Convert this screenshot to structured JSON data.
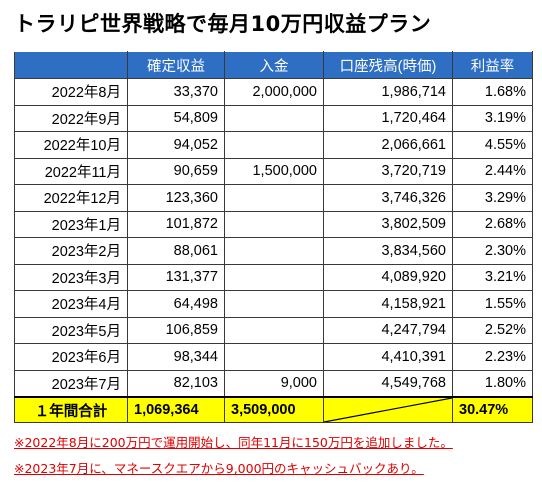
{
  "title": "トラリピ世界戦略で毎月10万円収益プラン",
  "columns": [
    "",
    "確定収益",
    "入金",
    "口座残高(時価)",
    "利益率"
  ],
  "rows": [
    {
      "month": "2022年8月",
      "profit": "33,370",
      "deposit": "2,000,000",
      "balance": "1,986,714",
      "rate": "1.68%"
    },
    {
      "month": "2022年9月",
      "profit": "54,809",
      "deposit": "",
      "balance": "1,720,464",
      "rate": "3.19%"
    },
    {
      "month": "2022年10月",
      "profit": "94,052",
      "deposit": "",
      "balance": "2,066,661",
      "rate": "4.55%"
    },
    {
      "month": "2022年11月",
      "profit": "90,659",
      "deposit": "1,500,000",
      "balance": "3,720,719",
      "rate": "2.44%"
    },
    {
      "month": "2022年12月",
      "profit": "123,360",
      "deposit": "",
      "balance": "3,746,326",
      "rate": "3.29%"
    },
    {
      "month": "2023年1月",
      "profit": "101,872",
      "deposit": "",
      "balance": "3,802,509",
      "rate": "2.68%"
    },
    {
      "month": "2023年2月",
      "profit": "88,061",
      "deposit": "",
      "balance": "3,834,560",
      "rate": "2.30%"
    },
    {
      "month": "2023年3月",
      "profit": "131,377",
      "deposit": "",
      "balance": "4,089,920",
      "rate": "3.21%"
    },
    {
      "month": "2023年4月",
      "profit": "64,498",
      "deposit": "",
      "balance": "4,158,921",
      "rate": "1.55%"
    },
    {
      "month": "2023年5月",
      "profit": "106,859",
      "deposit": "",
      "balance": "4,247,794",
      "rate": "2.52%"
    },
    {
      "month": "2023年6月",
      "profit": "98,344",
      "deposit": "",
      "balance": "4,410,391",
      "rate": "2.23%"
    },
    {
      "month": "2023年7月",
      "profit": "82,103",
      "deposit": "9,000",
      "balance": "4,549,768",
      "rate": "1.80%"
    }
  ],
  "total": {
    "label": "１年間合計",
    "profit": "1,069,364",
    "deposit": "3,509,000",
    "balance": "",
    "rate": "30.47%"
  },
  "notes": [
    "※2022年8月に200万円で運用開始し、同年11月に150万円を追加しました。",
    "※2023年7月に、マネースクエアから9,000円のキャッシュバックあり。"
  ],
  "colors": {
    "header_bg": "#2e6fc3",
    "total_bg": "#ffff00",
    "note_text": "#e00000"
  }
}
